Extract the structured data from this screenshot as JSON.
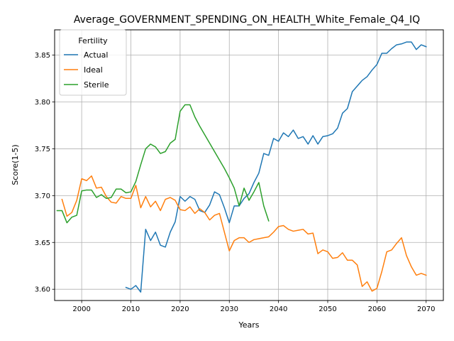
{
  "chart_data": {
    "type": "line",
    "title": "Average_GOVERNMENT_SPENDING_ON_HEALTH_White_Female_Q4_IQ",
    "xlabel": "Years",
    "ylabel": "Score(1-5)",
    "xlim": [
      1994.5,
      2073.5
    ],
    "ylim": [
      3.588,
      3.877
    ],
    "xticks": [
      2000,
      2010,
      2020,
      2030,
      2040,
      2050,
      2060,
      2070
    ],
    "yticks": [
      3.6,
      3.65,
      3.7,
      3.75,
      3.8,
      3.85
    ],
    "ytick_labels": [
      "3.60",
      "3.65",
      "3.70",
      "3.75",
      "3.80",
      "3.85"
    ],
    "grid": true,
    "legend": {
      "title": "Fertility",
      "position": "top-left"
    },
    "series": [
      {
        "name": "Actual",
        "color": "#1f77b4",
        "x": [
          2009,
          2010,
          2011,
          2012,
          2013,
          2014,
          2015,
          2016,
          2017,
          2018,
          2019,
          2020,
          2021,
          2022,
          2023,
          2024,
          2025,
          2026,
          2027,
          2028,
          2029,
          2030,
          2031,
          2032,
          2033,
          2034,
          2035,
          2036,
          2037,
          2038,
          2039,
          2040,
          2041,
          2042,
          2043,
          2044,
          2045,
          2046,
          2047,
          2048,
          2049,
          2050,
          2051,
          2052,
          2053,
          2054,
          2055,
          2056,
          2057,
          2058,
          2059,
          2060,
          2061,
          2062,
          2063,
          2064,
          2065,
          2066,
          2067,
          2068,
          2069,
          2070
        ],
        "y": [
          3.602,
          3.6,
          3.604,
          3.597,
          3.664,
          3.652,
          3.661,
          3.647,
          3.645,
          3.661,
          3.672,
          3.699,
          3.694,
          3.699,
          3.696,
          3.684,
          3.682,
          3.69,
          3.704,
          3.701,
          3.687,
          3.671,
          3.689,
          3.689,
          3.697,
          3.702,
          3.714,
          3.724,
          3.745,
          3.743,
          3.761,
          3.758,
          3.767,
          3.763,
          3.77,
          3.761,
          3.763,
          3.755,
          3.764,
          3.755,
          3.763,
          3.764,
          3.766,
          3.772,
          3.788,
          3.793,
          3.811,
          3.817,
          3.823,
          3.827,
          3.834,
          3.84,
          3.852,
          3.852,
          3.857,
          3.861,
          3.862,
          3.864,
          3.864,
          3.856,
          3.861,
          3.859
        ]
      },
      {
        "name": "Ideal",
        "color": "#ff7f0e",
        "x": [
          1996,
          1997,
          1998,
          1999,
          2000,
          2001,
          2002,
          2003,
          2004,
          2005,
          2006,
          2007,
          2008,
          2009,
          2010,
          2011,
          2012,
          2013,
          2014,
          2015,
          2016,
          2017,
          2018,
          2019,
          2020,
          2021,
          2022,
          2023,
          2024,
          2025,
          2026,
          2027,
          2028,
          2029,
          2030,
          2031,
          2032,
          2033,
          2034,
          2035,
          2036,
          2037,
          2038,
          2039,
          2040,
          2041,
          2042,
          2043,
          2044,
          2045,
          2046,
          2047,
          2048,
          2049,
          2050,
          2051,
          2052,
          2053,
          2054,
          2055,
          2056,
          2057,
          2058,
          2059,
          2060,
          2061,
          2062,
          2063,
          2064,
          2065,
          2066,
          2067,
          2068,
          2069,
          2070
        ],
        "y": [
          3.696,
          3.678,
          3.682,
          3.695,
          3.718,
          3.716,
          3.721,
          3.708,
          3.709,
          3.699,
          3.693,
          3.692,
          3.699,
          3.697,
          3.697,
          3.711,
          3.687,
          3.699,
          3.688,
          3.694,
          3.684,
          3.696,
          3.698,
          3.695,
          3.685,
          3.684,
          3.688,
          3.681,
          3.686,
          3.682,
          3.674,
          3.679,
          3.681,
          3.661,
          3.641,
          3.652,
          3.655,
          3.655,
          3.65,
          3.653,
          3.654,
          3.655,
          3.656,
          3.661,
          3.667,
          3.668,
          3.664,
          3.662,
          3.663,
          3.664,
          3.659,
          3.66,
          3.638,
          3.642,
          3.64,
          3.633,
          3.634,
          3.639,
          3.631,
          3.631,
          3.626,
          3.603,
          3.608,
          3.598,
          3.601,
          3.619,
          3.64,
          3.642,
          3.649,
          3.655,
          3.636,
          3.624,
          3.615,
          3.617,
          3.615
        ]
      },
      {
        "name": "Sterile",
        "color": "#2ca02c",
        "x": [
          1995,
          1996,
          1997,
          1998,
          1999,
          2000,
          2001,
          2002,
          2003,
          2004,
          2005,
          2006,
          2007,
          2008,
          2009,
          2010,
          2011,
          2012,
          2013,
          2014,
          2015,
          2016,
          2017,
          2018,
          2019,
          2020,
          2021,
          2022,
          2023,
          2024,
          2025,
          2026,
          2027,
          2028,
          2029,
          2030,
          2031,
          2032,
          2033,
          2034,
          2035,
          2036,
          2037,
          2038
        ],
        "y": [
          3.684,
          3.684,
          3.671,
          3.677,
          3.679,
          3.705,
          3.706,
          3.706,
          3.698,
          3.701,
          3.697,
          3.698,
          3.707,
          3.707,
          3.703,
          3.704,
          3.715,
          3.733,
          3.75,
          3.755,
          3.752,
          3.745,
          3.747,
          3.756,
          3.76,
          3.79,
          3.797,
          3.797,
          3.784,
          3.774,
          3.765,
          3.756,
          3.747,
          3.738,
          3.729,
          3.719,
          3.708,
          3.689,
          3.708,
          3.695,
          3.704,
          3.714,
          3.689,
          3.673
        ]
      }
    ]
  }
}
